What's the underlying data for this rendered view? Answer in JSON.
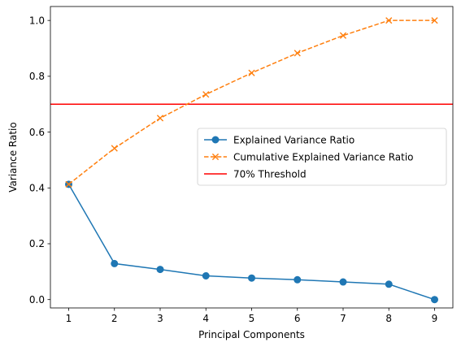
{
  "chart_data": {
    "type": "line",
    "title": "",
    "xlabel": "Principal Components",
    "ylabel": "Variance Ratio",
    "x": [
      1,
      2,
      3,
      4,
      5,
      6,
      7,
      8,
      9
    ],
    "xlim": [
      0.6,
      9.4
    ],
    "ylim": [
      -0.03,
      1.05
    ],
    "xticks": [
      1,
      2,
      3,
      4,
      5,
      6,
      7,
      8,
      9
    ],
    "yticks": [
      0.0,
      0.2,
      0.4,
      0.6,
      0.8,
      1.0
    ],
    "ytick_labels": [
      "0.0",
      "0.2",
      "0.4",
      "0.6",
      "0.8",
      "1.0"
    ],
    "grid": false,
    "legend_position": "center-right",
    "series": [
      {
        "name": "Explained Variance Ratio",
        "values": [
          0.413,
          0.129,
          0.108,
          0.085,
          0.077,
          0.071,
          0.063,
          0.055,
          0.0
        ],
        "color": "#1f77b4",
        "linestyle": "solid",
        "marker": "circle"
      },
      {
        "name": "Cumulative Explained Variance Ratio",
        "values": [
          0.413,
          0.542,
          0.65,
          0.735,
          0.812,
          0.883,
          0.946,
          1.0,
          1.0
        ],
        "color": "#ff7f0e",
        "linestyle": "dashed",
        "marker": "x"
      }
    ],
    "hlines": [
      {
        "name": "70% Threshold",
        "y": 0.7,
        "color": "#ff0000"
      }
    ]
  }
}
